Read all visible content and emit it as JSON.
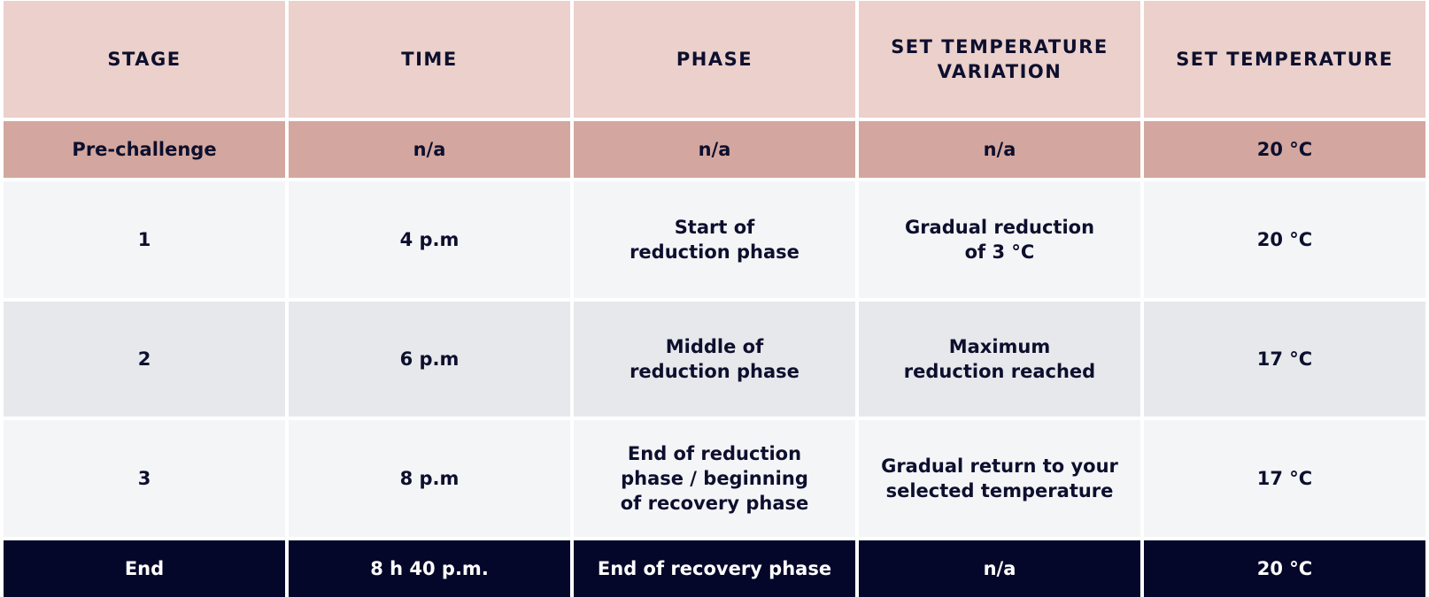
{
  "table": {
    "columns": [
      "STAGE",
      "TIME",
      "PHASE",
      "SET TEMPERATURE\nVARIATION",
      "SET TEMPERATURE"
    ],
    "rows": [
      [
        "Pre-challenge",
        "n/a",
        "n/a",
        "n/a",
        "20 °C"
      ],
      [
        "1",
        "4 p.m",
        "Start of\nreduction phase",
        "Gradual reduction\nof 3 °C",
        "20 °C"
      ],
      [
        "2",
        "6 p.m",
        "Middle of\nreduction phase",
        "Maximum\nreduction reached",
        "17 °C"
      ],
      [
        "3",
        "8 p.m",
        "End of reduction\nphase / beginning\nof recovery phase",
        "Gradual return to your\nselected temperature",
        "17 °C"
      ],
      [
        "End",
        "8 h 40 p.m.",
        "End of recovery phase",
        "n/a",
        "20 °C"
      ]
    ]
  }
}
